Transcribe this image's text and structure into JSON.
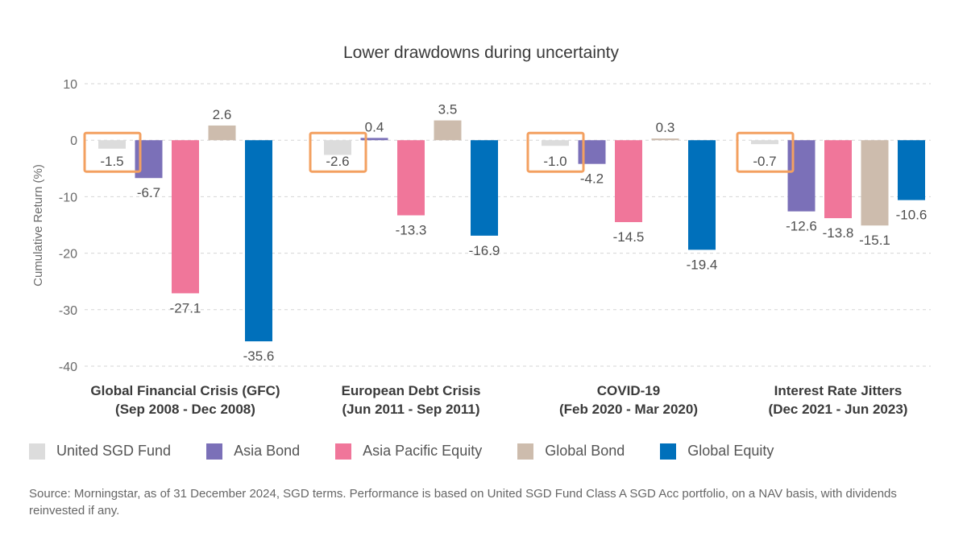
{
  "chart_data": {
    "type": "bar",
    "title": "Lower drawdowns during uncertainty",
    "ylabel": "Cumulative Return (%)",
    "ylim": [
      -40,
      10
    ],
    "yticks": [
      10,
      0,
      -10,
      -20,
      -30,
      -40
    ],
    "grid": true,
    "legend_position": "bottom",
    "categories": [
      [
        "Global Financial Crisis (GFC)",
        "(Sep 2008 - Dec 2008)"
      ],
      [
        "European Debt Crisis",
        "(Jun 2011 - Sep 2011)"
      ],
      [
        "COVID-19",
        "(Feb 2020 - Mar 2020)"
      ],
      [
        "Interest Rate Jitters",
        "(Dec 2021 - Jun 2023)"
      ]
    ],
    "series": [
      {
        "name": "United SGD Fund",
        "color": "#dcdcdc",
        "values": [
          -1.5,
          -2.6,
          -1.0,
          -0.7
        ],
        "labels": [
          "-1.5",
          "-2.6",
          "-1.0",
          "-0.7"
        ],
        "highlight": true
      },
      {
        "name": "Asia Bond",
        "color": "#7b70b8",
        "values": [
          -6.7,
          0.4,
          -4.2,
          -12.6
        ],
        "labels": [
          "-6.7",
          "0.4",
          "-4.2",
          "-12.6"
        ]
      },
      {
        "name": "Asia Pacific Equity",
        "color": "#f0769a",
        "values": [
          -27.1,
          -13.3,
          -14.5,
          -13.8
        ],
        "labels": [
          "-27.1",
          "-13.3",
          "-14.5",
          "-13.8"
        ]
      },
      {
        "name": "Global Bond",
        "color": "#cdbcad",
        "values": [
          2.6,
          3.5,
          0.3,
          -15.1
        ],
        "labels": [
          "2.6",
          "3.5",
          "0.3",
          "-15.1"
        ]
      },
      {
        "name": "Global Equity",
        "color": "#0070bb",
        "values": [
          -35.6,
          -16.9,
          -19.4,
          -10.6
        ],
        "labels": [
          "-35.6",
          "-16.9",
          "-19.4",
          "-10.6"
        ]
      }
    ],
    "highlight_color": "#f3a060"
  },
  "footer": {
    "source": "Source: Morningstar, as of 31 December 2024, SGD terms. Performance is based on United SGD Fund Class A SGD Acc portfolio, on a NAV basis, with dividends reinvested if any."
  }
}
